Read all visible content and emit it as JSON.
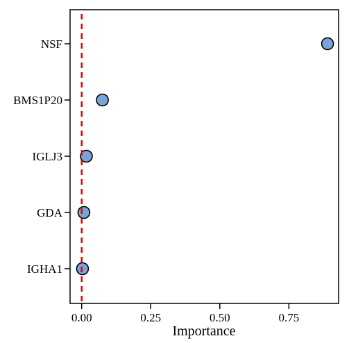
{
  "chart_data": {
    "type": "scatter",
    "title": "",
    "xlabel": "Importance",
    "ylabel": "",
    "categories": [
      "NSF",
      "BMS1P20",
      "IGLJ3",
      "GDA",
      "IGHA1"
    ],
    "values": [
      0.89,
      0.075,
      0.017,
      0.008,
      0.003
    ],
    "xlim": [
      -0.042,
      0.93
    ],
    "x_ticks": [
      0.0,
      0.25,
      0.5,
      0.75
    ],
    "x_tick_labels": [
      "0.00",
      "0.25",
      "0.50",
      "0.75"
    ],
    "reference_line": {
      "x": 0,
      "style": "dashed"
    },
    "grid": false,
    "colors": {
      "point_fill": "#7ba3d9",
      "point_stroke": "#000000",
      "reference_line": "#e00000",
      "axis": "#000000"
    }
  }
}
